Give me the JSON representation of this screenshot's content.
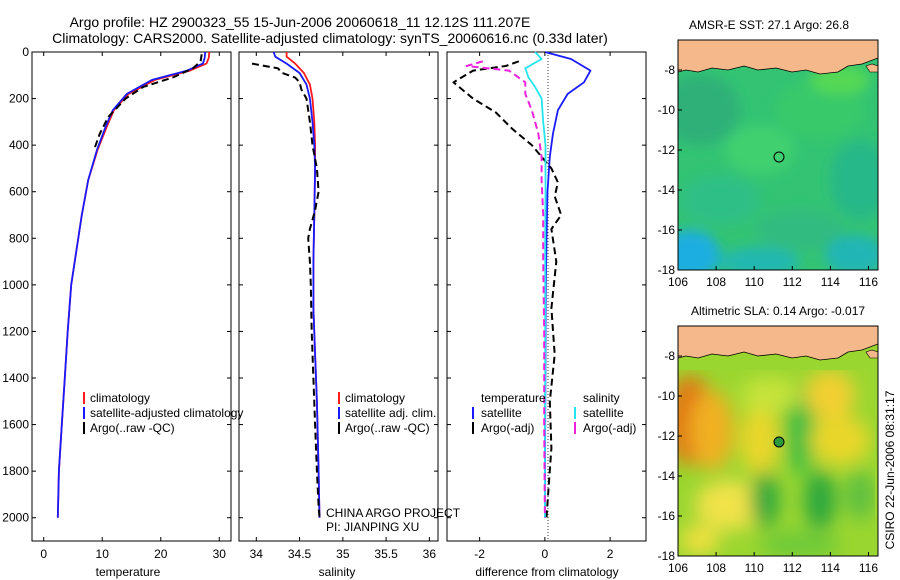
{
  "header": {
    "title_line1": "Argo profile: HZ 2900323_55 15-Jun-2006 20060618_11 12.12S 111.207E",
    "title_line2": "Climatology: CARS2000. Satellite-adjusted climatology: synTS_20060616.nc (0.33d later)"
  },
  "side_label": "CSIRO 22-Jun-2006 08:31:17",
  "colors": {
    "climatology": "#ff1a1a",
    "satellite": "#1a1aff",
    "argo": "#000000",
    "sal_satellite": "#22e5ee",
    "sal_argo": "#ee22dd",
    "land": "#f5b88a"
  },
  "chart_data": [
    {
      "type": "line",
      "panel": "temperature",
      "xlabel": "temperature",
      "xlim": [
        -2,
        32
      ],
      "xticks": [
        0,
        10,
        20,
        30
      ],
      "ylim": [
        0,
        2100
      ],
      "yticks": [
        0,
        200,
        400,
        600,
        800,
        1000,
        1200,
        1400,
        1600,
        1800,
        2000
      ],
      "y_reversed": true,
      "legend": [
        "climatology",
        "satellite-adjusted climatology",
        "Argo(..raw -QC)"
      ],
      "series": [
        {
          "name": "climatology",
          "color": "#ff1a1a",
          "dash": "solid",
          "x": [
            28.3,
            28.2,
            27.8,
            25,
            19,
            14.5,
            12,
            10.8,
            9.2,
            7.6,
            6.5,
            5.6,
            4.7,
            4.1,
            3.6,
            3.1,
            2.6,
            2.4
          ],
          "y": [
            0,
            25,
            50,
            80,
            120,
            180,
            250,
            320,
            420,
            550,
            700,
            850,
            1000,
            1200,
            1400,
            1600,
            1800,
            2000
          ]
        },
        {
          "name": "satellite-adjusted climatology",
          "color": "#1a1aff",
          "dash": "solid",
          "x": [
            27.6,
            27.5,
            27.2,
            24.5,
            18.5,
            14.2,
            11.8,
            10.6,
            9.1,
            7.6,
            6.5,
            5.6,
            4.7,
            4.1,
            3.6,
            3.1,
            2.6,
            2.4
          ],
          "y": [
            0,
            25,
            50,
            80,
            120,
            180,
            250,
            320,
            420,
            550,
            700,
            850,
            1000,
            1200,
            1400,
            1600,
            1800,
            2000
          ]
        },
        {
          "name": "Argo(..raw -QC)",
          "color": "#000000",
          "dash": "dashed",
          "x": [
            27.0,
            26.8,
            25.5,
            22,
            17,
            14,
            11,
            9.6,
            8.6
          ],
          "y": [
            10,
            40,
            70,
            110,
            150,
            200,
            280,
            350,
            420
          ]
        }
      ]
    },
    {
      "type": "line",
      "panel": "salinity",
      "xlabel": "salinity",
      "xlim": [
        33.8,
        36.1
      ],
      "xticks": [
        34,
        34.5,
        35,
        35.5,
        36
      ],
      "ylim": [
        0,
        2100
      ],
      "y_reversed": true,
      "legend": [
        "climatology",
        "satellite adj. clim.",
        "Argo(..raw -QC)"
      ],
      "annotation": [
        "CHINA ARGO PROJECT",
        "PI: JIANPING XU"
      ],
      "series": [
        {
          "name": "climatology",
          "color": "#ff1a1a",
          "dash": "solid",
          "x": [
            34.35,
            34.35,
            34.45,
            34.55,
            34.62,
            34.65,
            34.67,
            34.68,
            34.68,
            34.67,
            34.66,
            34.66,
            34.68,
            34.7,
            34.72,
            34.73
          ],
          "y": [
            0,
            20,
            50,
            90,
            140,
            200,
            300,
            400,
            500,
            700,
            900,
            1100,
            1300,
            1500,
            1800,
            2000
          ]
        },
        {
          "name": "satellite adj. clim.",
          "color": "#1a1aff",
          "dash": "solid",
          "x": [
            34.2,
            34.22,
            34.35,
            34.5,
            34.58,
            34.62,
            34.65,
            34.67,
            34.68,
            34.67,
            34.66,
            34.66,
            34.68,
            34.7,
            34.72,
            34.73
          ],
          "y": [
            0,
            20,
            50,
            90,
            140,
            200,
            300,
            400,
            500,
            700,
            900,
            1100,
            1300,
            1500,
            1800,
            2000
          ]
        },
        {
          "name": "Argo(..raw -QC)",
          "color": "#000000",
          "dash": "dashed",
          "x": [
            33.95,
            34.1,
            34.25,
            34.3,
            34.45,
            34.5,
            34.52,
            34.58,
            34.6,
            34.62,
            34.65,
            34.7,
            34.72,
            34.68,
            34.65,
            34.62,
            34.6,
            34.62,
            34.63,
            34.64,
            34.66,
            34.68,
            34.7,
            34.72,
            34.73
          ],
          "y": [
            50,
            60,
            70,
            90,
            110,
            130,
            160,
            200,
            250,
            300,
            400,
            500,
            600,
            680,
            720,
            760,
            800,
            900,
            1000,
            1200,
            1400,
            1600,
            1800,
            1950,
            2000
          ]
        }
      ]
    },
    {
      "type": "line",
      "panel": "difference",
      "xlabel": "difference from climatology",
      "xlim": [
        -3,
        3.1
      ],
      "xticks": [
        -2,
        0,
        2
      ],
      "ylim": [
        0,
        2100
      ],
      "y_reversed": true,
      "legend_temperature_header": "temperature",
      "legend_salinity_header": "salinity",
      "legend": [
        "satellite",
        "Argo(-adj)",
        "satellite",
        "Argo(-adj)"
      ],
      "series": [
        {
          "name": "temperature satellite",
          "color": "#1a1aff",
          "dash": "solid",
          "x": [
            0,
            0.8,
            1.4,
            1.2,
            0.7,
            0.4,
            0.25,
            0.15,
            0.08,
            0.05,
            0.03,
            0.02,
            0.01,
            0,
            0
          ],
          "y": [
            0,
            30,
            80,
            130,
            180,
            250,
            350,
            450,
            600,
            800,
            1000,
            1300,
            1600,
            1900,
            2000
          ]
        },
        {
          "name": "temperature Argo(-adj)",
          "color": "#000000",
          "dash": "dashed",
          "x": [
            -0.8,
            -1.2,
            -2.2,
            -2.8,
            -2.2,
            -1.5,
            -1.0,
            -0.4,
            0.2,
            0.4,
            0.3,
            0.5,
            0.2,
            0.35,
            0.2,
            0.3,
            0.15,
            0.2,
            0.1,
            0.05
          ],
          "y": [
            40,
            60,
            80,
            130,
            200,
            260,
            330,
            400,
            500,
            560,
            620,
            700,
            760,
            900,
            1100,
            1300,
            1500,
            1700,
            1900,
            2000
          ]
        },
        {
          "name": "salinity satellite",
          "color": "#22e5ee",
          "dash": "solid",
          "x": [
            -0.3,
            -0.1,
            -0.6,
            -0.5,
            -0.3,
            -0.1,
            -0.05,
            0.02,
            0.02,
            0.01,
            0.01,
            0.01,
            0.0,
            0.0
          ],
          "y": [
            0,
            30,
            70,
            110,
            150,
            200,
            300,
            400,
            600,
            800,
            1000,
            1400,
            1800,
            2000
          ]
        },
        {
          "name": "salinity Argo(-adj)",
          "color": "#ee22dd",
          "dash": "dashed",
          "x": [
            -1.9,
            -2.4,
            -1.1,
            -0.9,
            -0.6,
            -0.6,
            -0.4,
            -0.2,
            -0.1,
            -0.1,
            -0.05,
            -0.05,
            -0.02,
            -0.02,
            0.0
          ],
          "y": [
            40,
            60,
            80,
            100,
            130,
            180,
            250,
            350,
            450,
            550,
            700,
            900,
            1200,
            1600,
            2000
          ]
        }
      ]
    },
    {
      "type": "heatmap",
      "panel": "sst-map",
      "title": "AMSR-E SST: 27.1 Argo: 26.8",
      "xlim": [
        106,
        116.5
      ],
      "ylim": [
        -18,
        -6.5
      ],
      "xticks": [
        106,
        108,
        110,
        112,
        114,
        116
      ],
      "yticks": [
        -8,
        -10,
        -12,
        -14,
        -16,
        -18
      ],
      "argo_position": {
        "lon": 111.207,
        "lat": -12.12
      }
    },
    {
      "type": "heatmap",
      "panel": "sla-map",
      "title": "Altimetric SLA: 0.14 Argo: -0.017",
      "xlim": [
        106,
        116.5
      ],
      "ylim": [
        -18,
        -6.5
      ],
      "xticks": [
        106,
        108,
        110,
        112,
        114,
        116
      ],
      "yticks": [
        -8,
        -10,
        -12,
        -14,
        -16,
        -18
      ],
      "argo_position": {
        "lon": 111.207,
        "lat": -12.12
      }
    }
  ]
}
